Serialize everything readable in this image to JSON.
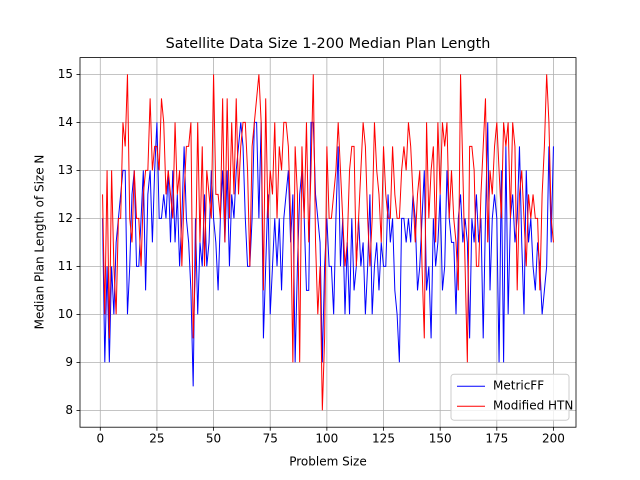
{
  "chart_data": {
    "type": "line",
    "title": "Satellite Data Size 1-200 Median Plan Length",
    "xlabel": "Problem Size",
    "ylabel": "Median Plan Length of Size N",
    "xlim": [
      -8.95,
      209.95
    ],
    "ylim": [
      7.65,
      15.35
    ],
    "xticks": [
      0,
      25,
      50,
      75,
      100,
      125,
      150,
      175,
      200
    ],
    "yticks": [
      8,
      9,
      10,
      11,
      12,
      13,
      14,
      15
    ],
    "grid": true,
    "legend": "lower right",
    "x": [
      1,
      2,
      3,
      4,
      5,
      6,
      7,
      8,
      9,
      10,
      11,
      12,
      13,
      14,
      15,
      16,
      17,
      18,
      19,
      20,
      21,
      22,
      23,
      24,
      25,
      26,
      27,
      28,
      29,
      30,
      31,
      32,
      33,
      34,
      35,
      36,
      37,
      38,
      39,
      40,
      41,
      42,
      43,
      44,
      45,
      46,
      47,
      48,
      49,
      50,
      51,
      52,
      53,
      54,
      55,
      56,
      57,
      58,
      59,
      60,
      61,
      62,
      63,
      64,
      65,
      66,
      67,
      68,
      69,
      70,
      71,
      72,
      73,
      74,
      75,
      76,
      77,
      78,
      79,
      80,
      81,
      82,
      83,
      84,
      85,
      86,
      87,
      88,
      89,
      90,
      91,
      92,
      93,
      94,
      95,
      96,
      97,
      98,
      99,
      100,
      101,
      102,
      103,
      104,
      105,
      106,
      107,
      108,
      109,
      110,
      111,
      112,
      113,
      114,
      115,
      116,
      117,
      118,
      119,
      120,
      121,
      122,
      123,
      124,
      125,
      126,
      127,
      128,
      129,
      130,
      131,
      132,
      133,
      134,
      135,
      136,
      137,
      138,
      139,
      140,
      141,
      142,
      143,
      144,
      145,
      146,
      147,
      148,
      149,
      150,
      151,
      152,
      153,
      154,
      155,
      156,
      157,
      158,
      159,
      160,
      161,
      162,
      163,
      164,
      165,
      166,
      167,
      168,
      169,
      170,
      171,
      172,
      173,
      174,
      175,
      176,
      177,
      178,
      179,
      180,
      181,
      182,
      183,
      184,
      185,
      186,
      187,
      188,
      189,
      190,
      191,
      192,
      193,
      194,
      195,
      196,
      197,
      198,
      199,
      200
    ],
    "series": [
      {
        "name": "MetricFF",
        "color": "#0000ff",
        "values": [
          12,
          9,
          11,
          9,
          11,
          10,
          11.5,
          12,
          12.5,
          13,
          13,
          10,
          11,
          12.5,
          13,
          11,
          11,
          12,
          13,
          10.5,
          12.5,
          13,
          11.5,
          13,
          14,
          12,
          12,
          12.5,
          12,
          13,
          11.5,
          13,
          11.5,
          12.5,
          11,
          12,
          13.5,
          12,
          11.5,
          10.5,
          8.5,
          12,
          10,
          11.5,
          11,
          12.5,
          11,
          11.5,
          13,
          12,
          11.5,
          10.5,
          12,
          13,
          11.5,
          13,
          11,
          12.5,
          12,
          13,
          13.5,
          14,
          13.5,
          12,
          11,
          11,
          12,
          14,
          14,
          12,
          14,
          9.5,
          11,
          12.5,
          10,
          11,
          12,
          11,
          12,
          10.5,
          12,
          12.5,
          13,
          11.5,
          12.5,
          9,
          11,
          12.5,
          13,
          12,
          10.5,
          10.5,
          14,
          14,
          12.5,
          12,
          11.5,
          9,
          11,
          12,
          11,
          11,
          10,
          12,
          13.5,
          11,
          12,
          10,
          11.5,
          10,
          12,
          10.5,
          11,
          12,
          11,
          11.5,
          10,
          11,
          12.5,
          10,
          11,
          11.5,
          10.5,
          11.5,
          11,
          11,
          12.5,
          11.5,
          12,
          10.5,
          10,
          9,
          12,
          12,
          11.5,
          12,
          11.5,
          12.5,
          12,
          10.5,
          11,
          12,
          13,
          10.5,
          11,
          9.5,
          12,
          11,
          11.5,
          12.5,
          10.5,
          11,
          13,
          12,
          11.5,
          11.5,
          10,
          12,
          12.5,
          11.5,
          12,
          11.5,
          9.5,
          12,
          11.5,
          12.5,
          11.5,
          12,
          9.5,
          12,
          14,
          10.5,
          12,
          12.5,
          12,
          9,
          13,
          9,
          13.5,
          10,
          12,
          12.5,
          11.5,
          12,
          13.5,
          11.5,
          10,
          13,
          11.5,
          12,
          11,
          10.5,
          11.5,
          11,
          10,
          10.5,
          11,
          13.5,
          11.5,
          13.5
        ]
      },
      {
        "name": "Modified HTN",
        "color": "#ff0000",
        "values": [
          12.5,
          10,
          13,
          9.5,
          13,
          11,
          10,
          12,
          12,
          14,
          13.5,
          15,
          12,
          11.5,
          13,
          12,
          12,
          11,
          12.5,
          13,
          13,
          14.5,
          13,
          13.5,
          13.5,
          13,
          14.5,
          14,
          12.5,
          13,
          12.5,
          12,
          14,
          12.5,
          13,
          11,
          12.5,
          13.5,
          13.5,
          14,
          9.5,
          11,
          14,
          11.5,
          13.5,
          11,
          13,
          12.5,
          12,
          15,
          12.5,
          12.5,
          12,
          14.5,
          11.5,
          14.5,
          12,
          14,
          12.5,
          14.5,
          12.5,
          13.5,
          14,
          14,
          13,
          11,
          13.5,
          14,
          14.5,
          15,
          14,
          10.5,
          14.5,
          12,
          13,
          12.5,
          14,
          12,
          13.5,
          13,
          14,
          14,
          13.5,
          12,
          9,
          13.5,
          12.5,
          9,
          13.5,
          12,
          14,
          11.5,
          13,
          15,
          11.5,
          10,
          11,
          8,
          9.5,
          13.5,
          12,
          12,
          12.5,
          13,
          14,
          13,
          12,
          11,
          11.5,
          13,
          13.5,
          13.5,
          11,
          12,
          13,
          14,
          13.5,
          12,
          11,
          12,
          14,
          13,
          12.5,
          11.5,
          13.5,
          12.5,
          12,
          12,
          13.5,
          12.5,
          12,
          12,
          13,
          13.5,
          13,
          14,
          13.5,
          12.5,
          11.5,
          12.5,
          13,
          11,
          9.5,
          14,
          12,
          13,
          13.5,
          11.5,
          14,
          12.5,
          14,
          13.5,
          14,
          12,
          13,
          12,
          11.5,
          10.5,
          15,
          13,
          11,
          9,
          13.5,
          13.5,
          13,
          11,
          11,
          12.5,
          13.5,
          14.5,
          11.5,
          13,
          12.5,
          13.5,
          14,
          13,
          12,
          14,
          13.5,
          14,
          12,
          14,
          13.5,
          10.5,
          12.5,
          13,
          12,
          11,
          12.5,
          12,
          12.5,
          12,
          12,
          10.5,
          12.5,
          13.5,
          15,
          14,
          12,
          11.5
        ]
      }
    ]
  }
}
